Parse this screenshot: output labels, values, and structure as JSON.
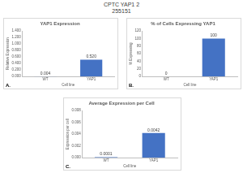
{
  "title": "CPTC YAP1 2",
  "subtitle": "255151",
  "chart_data": [
    {
      "panel": "A.",
      "type": "bar",
      "title": "YAP1 Expression",
      "x_label": "Cell line",
      "y_label": "Relative Expression",
      "categories": [
        "WT",
        "YAP1"
      ],
      "values": [
        0.004,
        0.52
      ],
      "value_labels": [
        "0.004",
        "0.520"
      ],
      "color": "#4472c4",
      "ylim": [
        0,
        1.4
      ],
      "yticks": [
        {
          "value": 0,
          "label": "0.000"
        },
        {
          "value": 0.2,
          "label": "0.200"
        },
        {
          "value": 0.4,
          "label": "0.400"
        },
        {
          "value": 0.6,
          "label": "0.600"
        },
        {
          "value": 0.8,
          "label": "0.800"
        },
        {
          "value": 1,
          "label": "1.000"
        },
        {
          "value": 1.2,
          "label": "1.200"
        },
        {
          "value": 1.4,
          "label": "1.400"
        }
      ],
      "grid": false,
      "data_labels": true
    },
    {
      "panel": "B.",
      "type": "bar",
      "title": "% of Cells Expressing YAP1",
      "x_label": "Cell line",
      "y_label": "% Expressing",
      "categories": [
        "WT",
        "YAP1"
      ],
      "values": [
        0,
        100
      ],
      "color": "#4472c4",
      "ylim": [
        0,
        120
      ],
      "yticks": [
        0,
        20,
        40,
        60,
        80,
        100,
        120
      ],
      "grid": false,
      "data_labels": true
    },
    {
      "panel": "C.",
      "type": "bar",
      "title": "Average Expression per Cell",
      "x_label": "Cell line",
      "y_label": "Expression per cell",
      "categories": [
        "WT",
        "YAP1"
      ],
      "values": [
        0.0001,
        0.0042
      ],
      "value_labels": [
        "0.0001",
        "0.0042"
      ],
      "color": "#4472c4",
      "ylim": [
        0,
        0.008
      ],
      "yticks": [
        {
          "value": 0,
          "label": "0.000"
        },
        {
          "value": 0.002,
          "label": "0.002"
        },
        {
          "value": 0.004,
          "label": "0.004"
        },
        {
          "value": 0.006,
          "label": "0.006"
        },
        {
          "value": 0.008,
          "label": "0.008"
        }
      ],
      "grid": false,
      "data_labels": true
    }
  ]
}
